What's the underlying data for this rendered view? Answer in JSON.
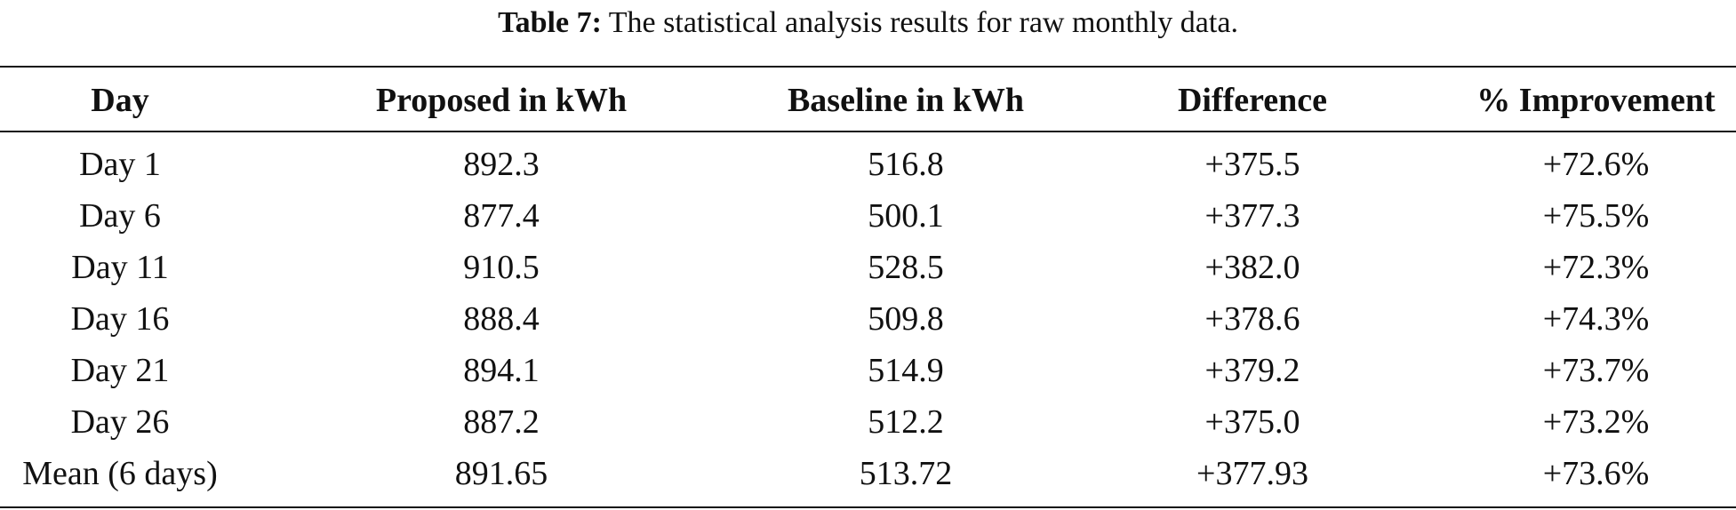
{
  "caption": {
    "label": "Table 7:",
    "text": "The statistical analysis results for raw monthly data."
  },
  "table": {
    "headers": [
      "Day",
      "Proposed in kWh",
      "Baseline in kWh",
      "Difference",
      "% Improvement"
    ],
    "rows": [
      [
        "Day 1",
        "892.3",
        "516.8",
        "+375.5",
        "+72.6%"
      ],
      [
        "Day 6",
        "877.4",
        "500.1",
        "+377.3",
        "+75.5%"
      ],
      [
        "Day 11",
        "910.5",
        "528.5",
        "+382.0",
        "+72.3%"
      ],
      [
        "Day 16",
        "888.4",
        "509.8",
        "+378.6",
        "+74.3%"
      ],
      [
        "Day 21",
        "894.1",
        "514.9",
        "+379.2",
        "+73.7%"
      ],
      [
        "Day 26",
        "887.2",
        "512.2",
        "+375.0",
        "+73.2%"
      ],
      [
        "Mean (6 days)",
        "891.65",
        "513.72",
        "+377.93",
        "+73.6%"
      ]
    ]
  }
}
